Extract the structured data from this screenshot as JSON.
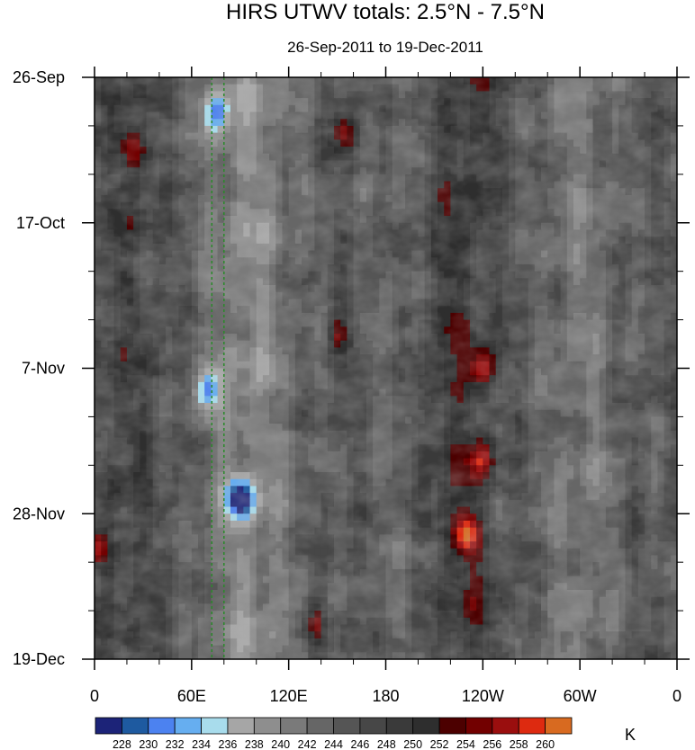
{
  "chart_data": {
    "type": "heatmap",
    "title": "HIRS UTWV totals: 2.5°N - 7.5°N",
    "subtitle": "26-Sep-2011 to 19-Dec-2011",
    "xlabel": "",
    "ylabel": "",
    "x_ticks": [
      "0",
      "60E",
      "120E",
      "180",
      "120W",
      "60W",
      "0"
    ],
    "x_tick_values": [
      0,
      60,
      120,
      180,
      240,
      300,
      360
    ],
    "xlim": [
      0,
      360
    ],
    "y_ticks": [
      "26-Sep",
      "17-Oct",
      "7-Nov",
      "28-Nov",
      "19-Dec"
    ],
    "y_tick_values": [
      "2011-09-26",
      "2011-10-17",
      "2011-11-07",
      "2011-11-28",
      "2011-12-19"
    ],
    "ylim": [
      "2011-09-26",
      "2011-12-19"
    ],
    "reference_lines_longitude": [
      72.5,
      80
    ],
    "reference_line_color": "#2a8a2a",
    "colorbar": {
      "units": "K",
      "levels": [
        228,
        230,
        232,
        234,
        236,
        238,
        240,
        242,
        244,
        246,
        248,
        250,
        252,
        254,
        256,
        258,
        260
      ],
      "colors": [
        "#1c2378",
        "#1e5aa0",
        "#4c82f0",
        "#66aef0",
        "#a8dcec",
        "#a6a6a6",
        "#8e8e8e",
        "#7a7a7a",
        "#666666",
        "#555555",
        "#474747",
        "#3a3a3a",
        "#2e2e2e",
        "#4c0000",
        "#720000",
        "#9a0e0e",
        "#dd2a10",
        "#d86a20"
      ]
    },
    "features": [
      {
        "lon": 25,
        "date": "2011-10-06",
        "value": 255
      },
      {
        "lon": 155,
        "date": "2011-10-04",
        "value": 256
      },
      {
        "lon": 150,
        "date": "2011-11-02",
        "value": 256
      },
      {
        "lon": 240,
        "date": "2011-11-07",
        "value": 259
      },
      {
        "lon": 230,
        "date": "2011-12-01",
        "value": 258
      },
      {
        "lon": 240,
        "date": "2011-11-20",
        "value": 255
      },
      {
        "lon": 90,
        "date": "2011-11-26",
        "value": 229
      },
      {
        "lon": 75,
        "date": "2011-10-01",
        "value": 232
      },
      {
        "lon": 70,
        "date": "2011-11-10",
        "value": 233
      },
      {
        "lon": 2,
        "date": "2011-12-03",
        "value": 255
      },
      {
        "lon": 135,
        "date": "2011-12-14",
        "value": 255
      }
    ]
  }
}
